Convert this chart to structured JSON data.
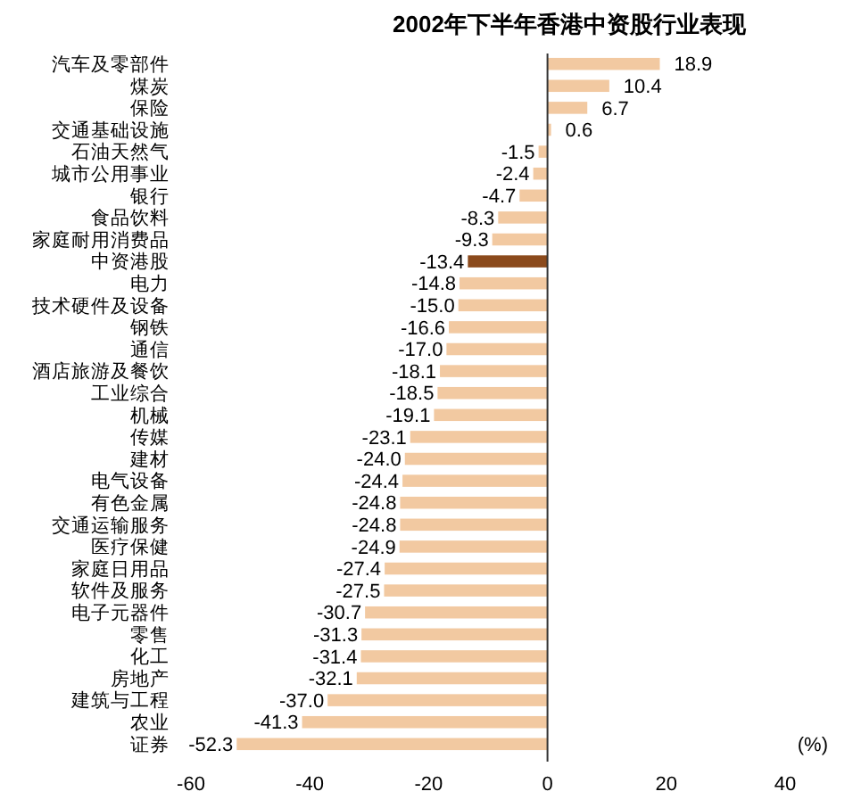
{
  "chart_data": {
    "type": "bar",
    "orientation": "horizontal",
    "title": "2002年下半年香港中资股行业表现",
    "categories": [
      "汽车及零部件",
      "煤炭",
      "保险",
      "交通基础设施",
      "石油天然气",
      "城市公用事业",
      "银行",
      "食品饮料",
      "家庭耐用消费品",
      "中资港股",
      "电力",
      "技术硬件及设备",
      "钢铁",
      "通信",
      "酒店旅游及餐饮",
      "工业综合",
      "机械",
      "传媒",
      "建材",
      "电气设备",
      "有色金属",
      "交通运输服务",
      "医疗保健",
      "家庭日用品",
      "软件及服务",
      "电子元器件",
      "零售",
      "化工",
      "房地产",
      "建筑与工程",
      "农业",
      "证券"
    ],
    "values": [
      18.9,
      10.4,
      6.7,
      0.6,
      -1.5,
      -2.4,
      -4.7,
      -8.3,
      -9.3,
      -13.4,
      -14.8,
      -15.0,
      -16.6,
      -17.0,
      -18.1,
      -18.5,
      -19.1,
      -23.1,
      -24.0,
      -24.4,
      -24.8,
      -24.8,
      -24.9,
      -27.4,
      -27.5,
      -30.7,
      -31.3,
      -31.4,
      -32.1,
      -37.0,
      -41.3,
      -52.3
    ],
    "value_labels": [
      "18.9",
      "10.4",
      "6.7",
      "0.6",
      "-1.5",
      "-2.4",
      "-4.7",
      "-8.3",
      "-9.3",
      "-13.4",
      "-14.8",
      "-15.0",
      "-16.6",
      "-17.0",
      "-18.1",
      "-18.5",
      "-19.1",
      "-23.1",
      "-24.0",
      "-24.4",
      "-24.8",
      "-24.8",
      "-24.9",
      "-27.4",
      "-27.5",
      "-30.7",
      "-31.3",
      "-31.4",
      "-32.1",
      "-37.0",
      "-41.3",
      "-52.3"
    ],
    "colors": [
      "#f2c9a1",
      "#f2c9a1",
      "#f2c9a1",
      "#f2c9a1",
      "#f2c9a1",
      "#f2c9a1",
      "#f2c9a1",
      "#f2c9a1",
      "#f2c9a1",
      "#8b4a1c",
      "#f2c9a1",
      "#f2c9a1",
      "#f2c9a1",
      "#f2c9a1",
      "#f2c9a1",
      "#f2c9a1",
      "#f2c9a1",
      "#f2c9a1",
      "#f2c9a1",
      "#f2c9a1",
      "#f2c9a1",
      "#f2c9a1",
      "#f2c9a1",
      "#f2c9a1",
      "#f2c9a1",
      "#f2c9a1",
      "#f2c9a1",
      "#f2c9a1",
      "#f2c9a1",
      "#f2c9a1",
      "#f2c9a1",
      "#f2c9a1"
    ],
    "xlim": [
      -60,
      40
    ],
    "xticks": [
      -60,
      -40,
      -20,
      0,
      20,
      40
    ],
    "annotations": [
      "(%)"
    ]
  }
}
